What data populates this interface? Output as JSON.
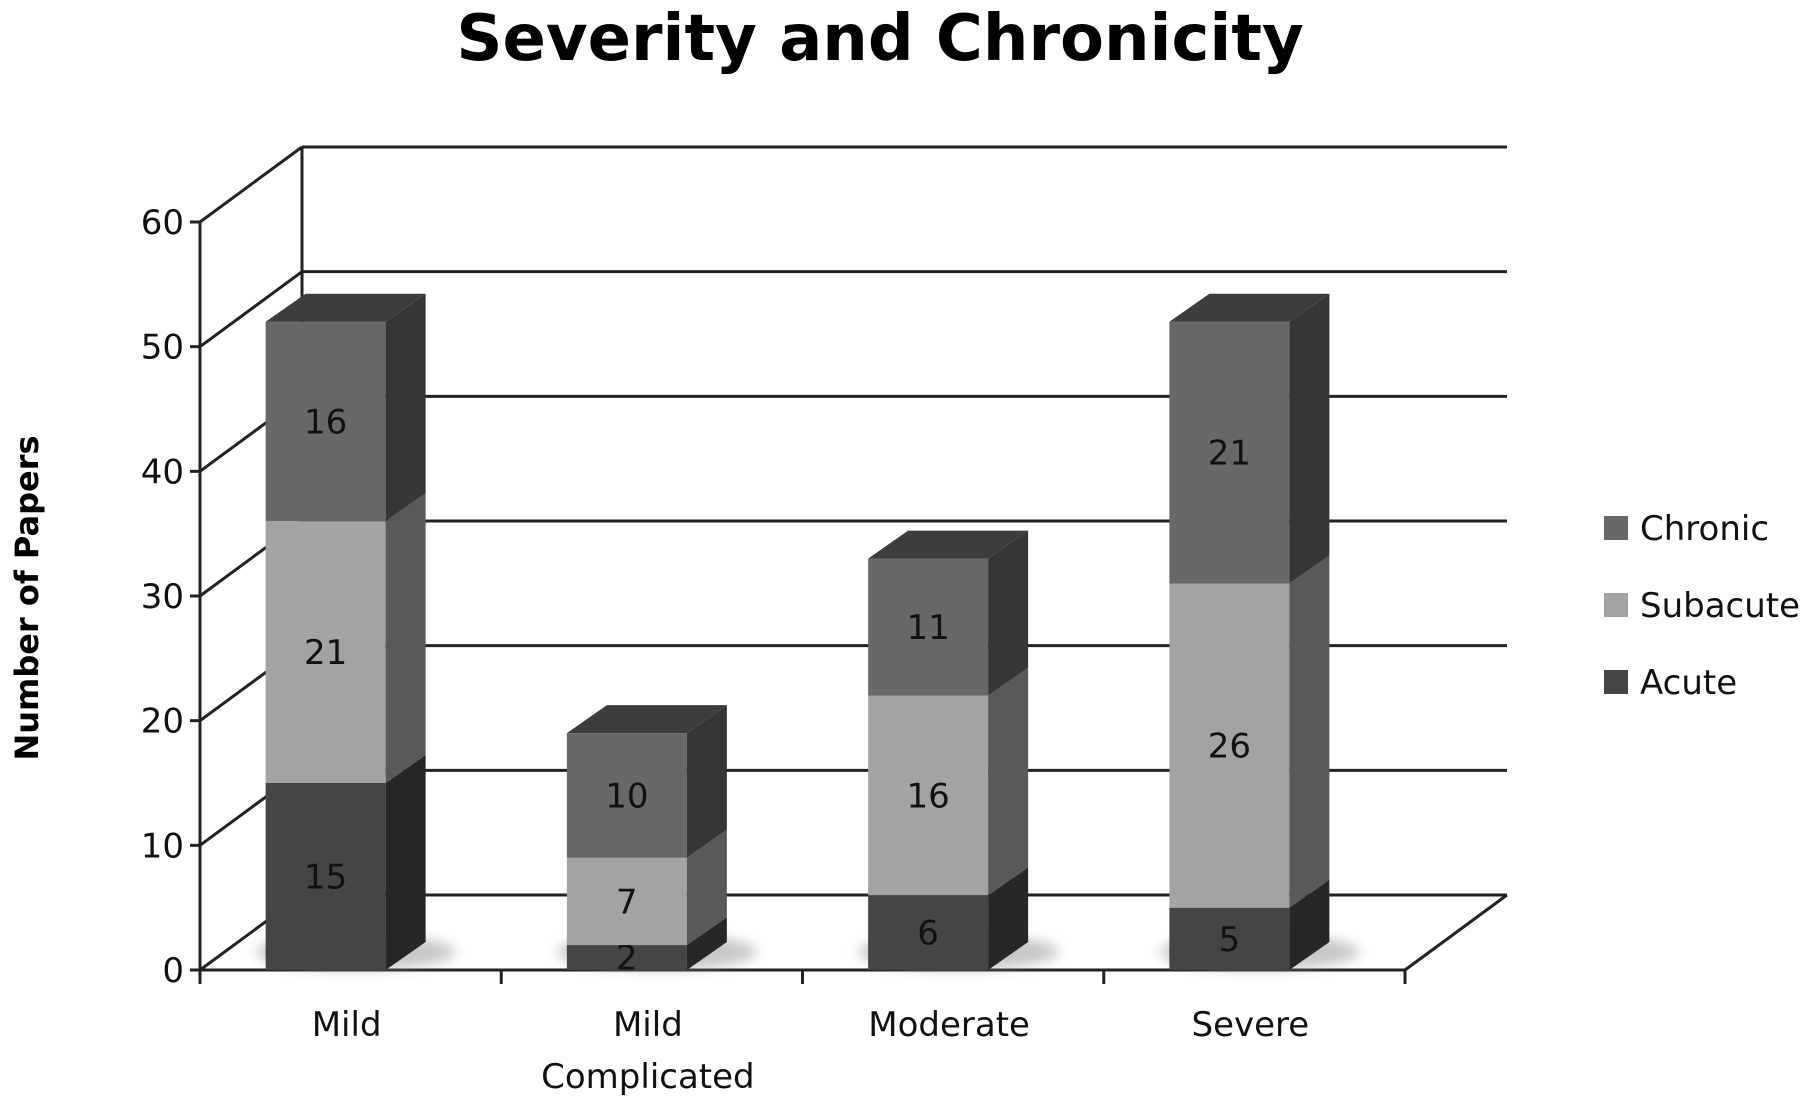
{
  "chart_data": {
    "type": "bar",
    "stacked": true,
    "three_d": true,
    "title": "Severity and Chronicity",
    "ylabel": "Number of Papers",
    "xlabel": "",
    "ylim": [
      0,
      60
    ],
    "yticks": [
      0,
      10,
      20,
      30,
      40,
      50,
      60
    ],
    "grid": true,
    "legend_position": "right",
    "categories": [
      [
        "Mild"
      ],
      [
        "Mild",
        "Complicated"
      ],
      [
        "Moderate"
      ],
      [
        "Severe"
      ]
    ],
    "series": [
      {
        "name": "Acute",
        "values": [
          15,
          2,
          6,
          5
        ]
      },
      {
        "name": "Subacute",
        "values": [
          21,
          7,
          16,
          26
        ]
      },
      {
        "name": "Chronic",
        "values": [
          16,
          10,
          11,
          21
        ]
      }
    ],
    "legend_order": [
      "Chronic",
      "Subacute",
      "Acute"
    ],
    "colors": {
      "Acute": {
        "front": "#454545",
        "side": "#272727",
        "top": "#353535"
      },
      "Subacute": {
        "front": "#a3a3a3",
        "side": "#595959",
        "top": "#8f8f8f"
      },
      "Chronic": {
        "front": "#686868",
        "side": "#363636",
        "top": "#3d3d3d"
      }
    }
  }
}
